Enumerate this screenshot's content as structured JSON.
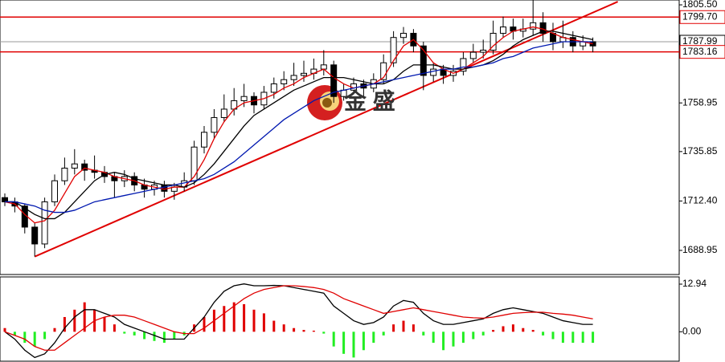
{
  "chart_data": [
    {
      "type": "candlestick",
      "open": [
        1714,
        1712,
        1710,
        1700,
        1692,
        1712,
        1722,
        1728,
        1730,
        1727,
        1726,
        1724,
        1722,
        1724,
        1720,
        1718,
        1720,
        1717,
        1719,
        1722,
        1738,
        1745,
        1752,
        1756,
        1760,
        1762,
        1758,
        1764,
        1768,
        1770,
        1772,
        1773,
        1775,
        1777,
        1762,
        1765,
        1768,
        1766,
        1770,
        1778,
        1790,
        1792,
        1786,
        1772,
        1775,
        1772,
        1774,
        1780,
        1783,
        1784,
        1792,
        1795,
        1793,
        1794,
        1797,
        1792,
        1788,
        1790,
        1786,
        1788
      ],
      "high": [
        1716,
        1714,
        1711,
        1702,
        1714,
        1725,
        1733,
        1737,
        1732,
        1734,
        1729,
        1726,
        1727,
        1726,
        1723,
        1722,
        1722,
        1721,
        1726,
        1741,
        1748,
        1756,
        1763,
        1766,
        1768,
        1764,
        1767,
        1771,
        1774,
        1778,
        1779,
        1780,
        1784,
        1779,
        1768,
        1771,
        1770,
        1773,
        1782,
        1793,
        1795,
        1794,
        1788,
        1778,
        1777,
        1777,
        1783,
        1787,
        1789,
        1798,
        1800,
        1799,
        1799,
        1808,
        1802,
        1797,
        1798,
        1793,
        1791,
        1790
      ],
      "low": [
        1710,
        1707,
        1697,
        1686,
        1690,
        1710,
        1720,
        1725,
        1722,
        1723,
        1721,
        1714,
        1719,
        1717,
        1714,
        1715,
        1714,
        1713,
        1717,
        1720,
        1735,
        1742,
        1750,
        1753,
        1757,
        1754,
        1756,
        1761,
        1765,
        1767,
        1769,
        1770,
        1772,
        1759,
        1760,
        1763,
        1762,
        1764,
        1768,
        1776,
        1787,
        1783,
        1765,
        1769,
        1768,
        1769,
        1772,
        1778,
        1780,
        1782,
        1790,
        1789,
        1790,
        1791,
        1788,
        1784,
        1785,
        1783,
        1784,
        1783
      ],
      "close": [
        1712,
        1710,
        1700,
        1692,
        1712,
        1722,
        1728,
        1730,
        1727,
        1726,
        1724,
        1722,
        1724,
        1720,
        1718,
        1720,
        1717,
        1719,
        1722,
        1738,
        1745,
        1752,
        1756,
        1760,
        1762,
        1758,
        1764,
        1768,
        1770,
        1772,
        1773,
        1775,
        1777,
        1762,
        1765,
        1768,
        1766,
        1770,
        1778,
        1790,
        1792,
        1786,
        1772,
        1775,
        1772,
        1774,
        1780,
        1783,
        1784,
        1792,
        1795,
        1793,
        1794,
        1797,
        1792,
        1788,
        1790,
        1786,
        1788,
        1786
      ],
      "series": [
        {
          "color": "#e00000",
          "values": [
            1712,
            1711,
            1706,
            1702,
            1703,
            1708,
            1716,
            1724,
            1728,
            1727,
            1726,
            1724,
            1723,
            1722,
            1720,
            1719,
            1718,
            1719,
            1719,
            1724,
            1732,
            1742,
            1750,
            1756,
            1759,
            1760,
            1761,
            1763,
            1766,
            1768,
            1771,
            1773,
            1775,
            1771,
            1768,
            1766,
            1767,
            1768,
            1771,
            1779,
            1786,
            1789,
            1784,
            1778,
            1775,
            1773,
            1775,
            1778,
            1781,
            1786,
            1790,
            1793,
            1794,
            1795,
            1794,
            1792,
            1790,
            1789,
            1788,
            1787
          ]
        },
        {
          "color": "#000000",
          "values": [
            1712,
            1712,
            1709,
            1706,
            1704,
            1704,
            1707,
            1712,
            1717,
            1722,
            1725,
            1726,
            1725,
            1723,
            1722,
            1721,
            1720,
            1720,
            1719,
            1721,
            1725,
            1730,
            1736,
            1742,
            1748,
            1753,
            1756,
            1759,
            1762,
            1765,
            1767,
            1769,
            1771,
            1771,
            1771,
            1770,
            1769,
            1768,
            1768,
            1770,
            1774,
            1777,
            1777,
            1777,
            1776,
            1775,
            1775,
            1776,
            1777,
            1779,
            1782,
            1786,
            1789,
            1791,
            1793,
            1793,
            1792,
            1791,
            1790,
            1789
          ]
        },
        {
          "color": "#0018b0",
          "values": [
            1712,
            1712,
            1711,
            1710,
            1708,
            1707,
            1707,
            1708,
            1710,
            1712,
            1713,
            1714,
            1715,
            1716,
            1717,
            1718,
            1719,
            1720,
            1721,
            1722,
            1723,
            1725,
            1728,
            1731,
            1735,
            1739,
            1743,
            1747,
            1751,
            1754,
            1757,
            1760,
            1762,
            1764,
            1765,
            1766,
            1767,
            1768,
            1769,
            1770,
            1771,
            1772,
            1773,
            1774,
            1775,
            1775,
            1776,
            1776,
            1777,
            1778,
            1780,
            1781,
            1783,
            1785,
            1786,
            1787,
            1788,
            1788,
            1788,
            1788
          ]
        }
      ],
      "ylim": [
        1677.5,
        1807.8
      ],
      "yticks": [
        {
          "value": 1805.5,
          "label": "1805.50"
        },
        1758.95,
        1735.85,
        {
          "value": 1712.4,
          "label": "1712.40"
        },
        1688.95
      ],
      "levels": [
        {
          "value": 1799.7,
          "label": "1799.70",
          "color": "#e00000"
        },
        {
          "value": 1787.99,
          "label": "1787.99",
          "color": "#999999"
        },
        {
          "value": 1783.16,
          "label": "1783.16",
          "color": "#e00000"
        }
      ],
      "trendline": {
        "x": [
          3,
          61.5
        ],
        "y": [
          1686,
          1807
        ],
        "color": "#e00000"
      },
      "watermark": "金 盛"
    },
    {
      "type": "macd",
      "values": [
        1,
        -1,
        -3,
        -4,
        -2,
        1,
        4,
        6,
        8,
        6,
        4,
        2,
        -0.5,
        -1,
        -2,
        -2.5,
        -3,
        -2,
        -1,
        2,
        4,
        6,
        7,
        8,
        7.5,
        6,
        5,
        3,
        2,
        1,
        0.5,
        0.3,
        -0.5,
        -4,
        -6,
        -7,
        -5,
        -3,
        -1,
        2,
        3,
        2,
        -1,
        -3,
        -5,
        -4,
        -3,
        -2,
        -1,
        0.5,
        1.5,
        2,
        1,
        0.5,
        -1,
        -2,
        -3,
        -3,
        -3,
        -3
      ],
      "up_color": "#e00000",
      "down_color": "#22ee22",
      "series": [
        {
          "color": "#000000",
          "values": [
            0,
            -2,
            -5,
            -7,
            -6,
            -3,
            1,
            4,
            6,
            6,
            5,
            4,
            2,
            1,
            0,
            -1,
            -2,
            -2,
            -2,
            1,
            4,
            8,
            11,
            12.5,
            13,
            12.5,
            12.5,
            12.6,
            12.5,
            12,
            11.5,
            11,
            10.5,
            7,
            5,
            3,
            2,
            2.5,
            4,
            7,
            8.5,
            8,
            5,
            3,
            2,
            2,
            2.5,
            3,
            3.5,
            5,
            6,
            6.5,
            6,
            5.5,
            5,
            4,
            3,
            2.5,
            2,
            2
          ]
        },
        {
          "color": "#e00000",
          "values": [
            0,
            -1,
            -2,
            -4,
            -5,
            -5,
            -3,
            -1,
            1,
            3,
            4,
            4.5,
            4.5,
            4,
            3,
            2,
            1,
            0,
            -0.5,
            -0.5,
            1,
            3,
            5,
            7,
            9,
            10.5,
            11.5,
            12,
            12.5,
            12.5,
            12.3,
            12,
            11.5,
            10.5,
            9,
            8,
            7,
            6,
            5,
            5.5,
            6,
            6.5,
            6,
            5.5,
            5,
            4.5,
            4,
            3.8,
            3.7,
            4,
            4.5,
            5,
            5.2,
            5.3,
            5.3,
            5,
            4.8,
            4.5,
            4,
            3.5
          ]
        }
      ],
      "ylim": [
        -8,
        14.9
      ],
      "yticks": [
        12.94,
        {
          "value": 0,
          "label": "0.00"
        }
      ]
    }
  ]
}
